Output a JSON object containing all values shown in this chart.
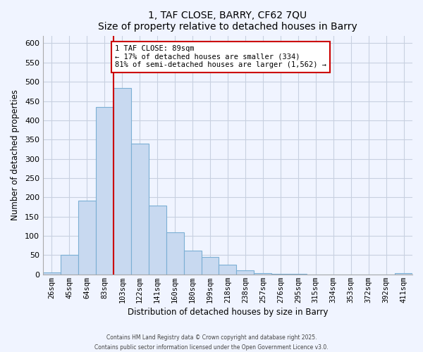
{
  "title": "1, TAF CLOSE, BARRY, CF62 7QU",
  "subtitle": "Size of property relative to detached houses in Barry",
  "xlabel": "Distribution of detached houses by size in Barry",
  "ylabel": "Number of detached properties",
  "bar_labels": [
    "26sqm",
    "45sqm",
    "64sqm",
    "83sqm",
    "103sqm",
    "122sqm",
    "141sqm",
    "160sqm",
    "180sqm",
    "199sqm",
    "218sqm",
    "238sqm",
    "257sqm",
    "276sqm",
    "295sqm",
    "315sqm",
    "334sqm",
    "353sqm",
    "372sqm",
    "392sqm",
    "411sqm"
  ],
  "bar_values": [
    5,
    50,
    192,
    435,
    483,
    340,
    178,
    110,
    62,
    45,
    25,
    10,
    3,
    1,
    1,
    0,
    0,
    0,
    0,
    0,
    4
  ],
  "bar_color": "#c8d9f0",
  "bar_edge_color": "#7bafd4",
  "vline_x_idx": 3.5,
  "vline_color": "#cc0000",
  "annotation_title": "1 TAF CLOSE: 89sqm",
  "annotation_line1": "← 17% of detached houses are smaller (334)",
  "annotation_line2": "81% of semi-detached houses are larger (1,562) →",
  "annotation_box_color": "#ffffff",
  "annotation_box_edge": "#cc0000",
  "ylim": [
    0,
    620
  ],
  "yticks": [
    0,
    50,
    100,
    150,
    200,
    250,
    300,
    350,
    400,
    450,
    500,
    550,
    600
  ],
  "footer1": "Contains HM Land Registry data © Crown copyright and database right 2025.",
  "footer2": "Contains public sector information licensed under the Open Government Licence v3.0.",
  "bg_color": "#f0f4ff",
  "grid_color": "#c8d0e0"
}
